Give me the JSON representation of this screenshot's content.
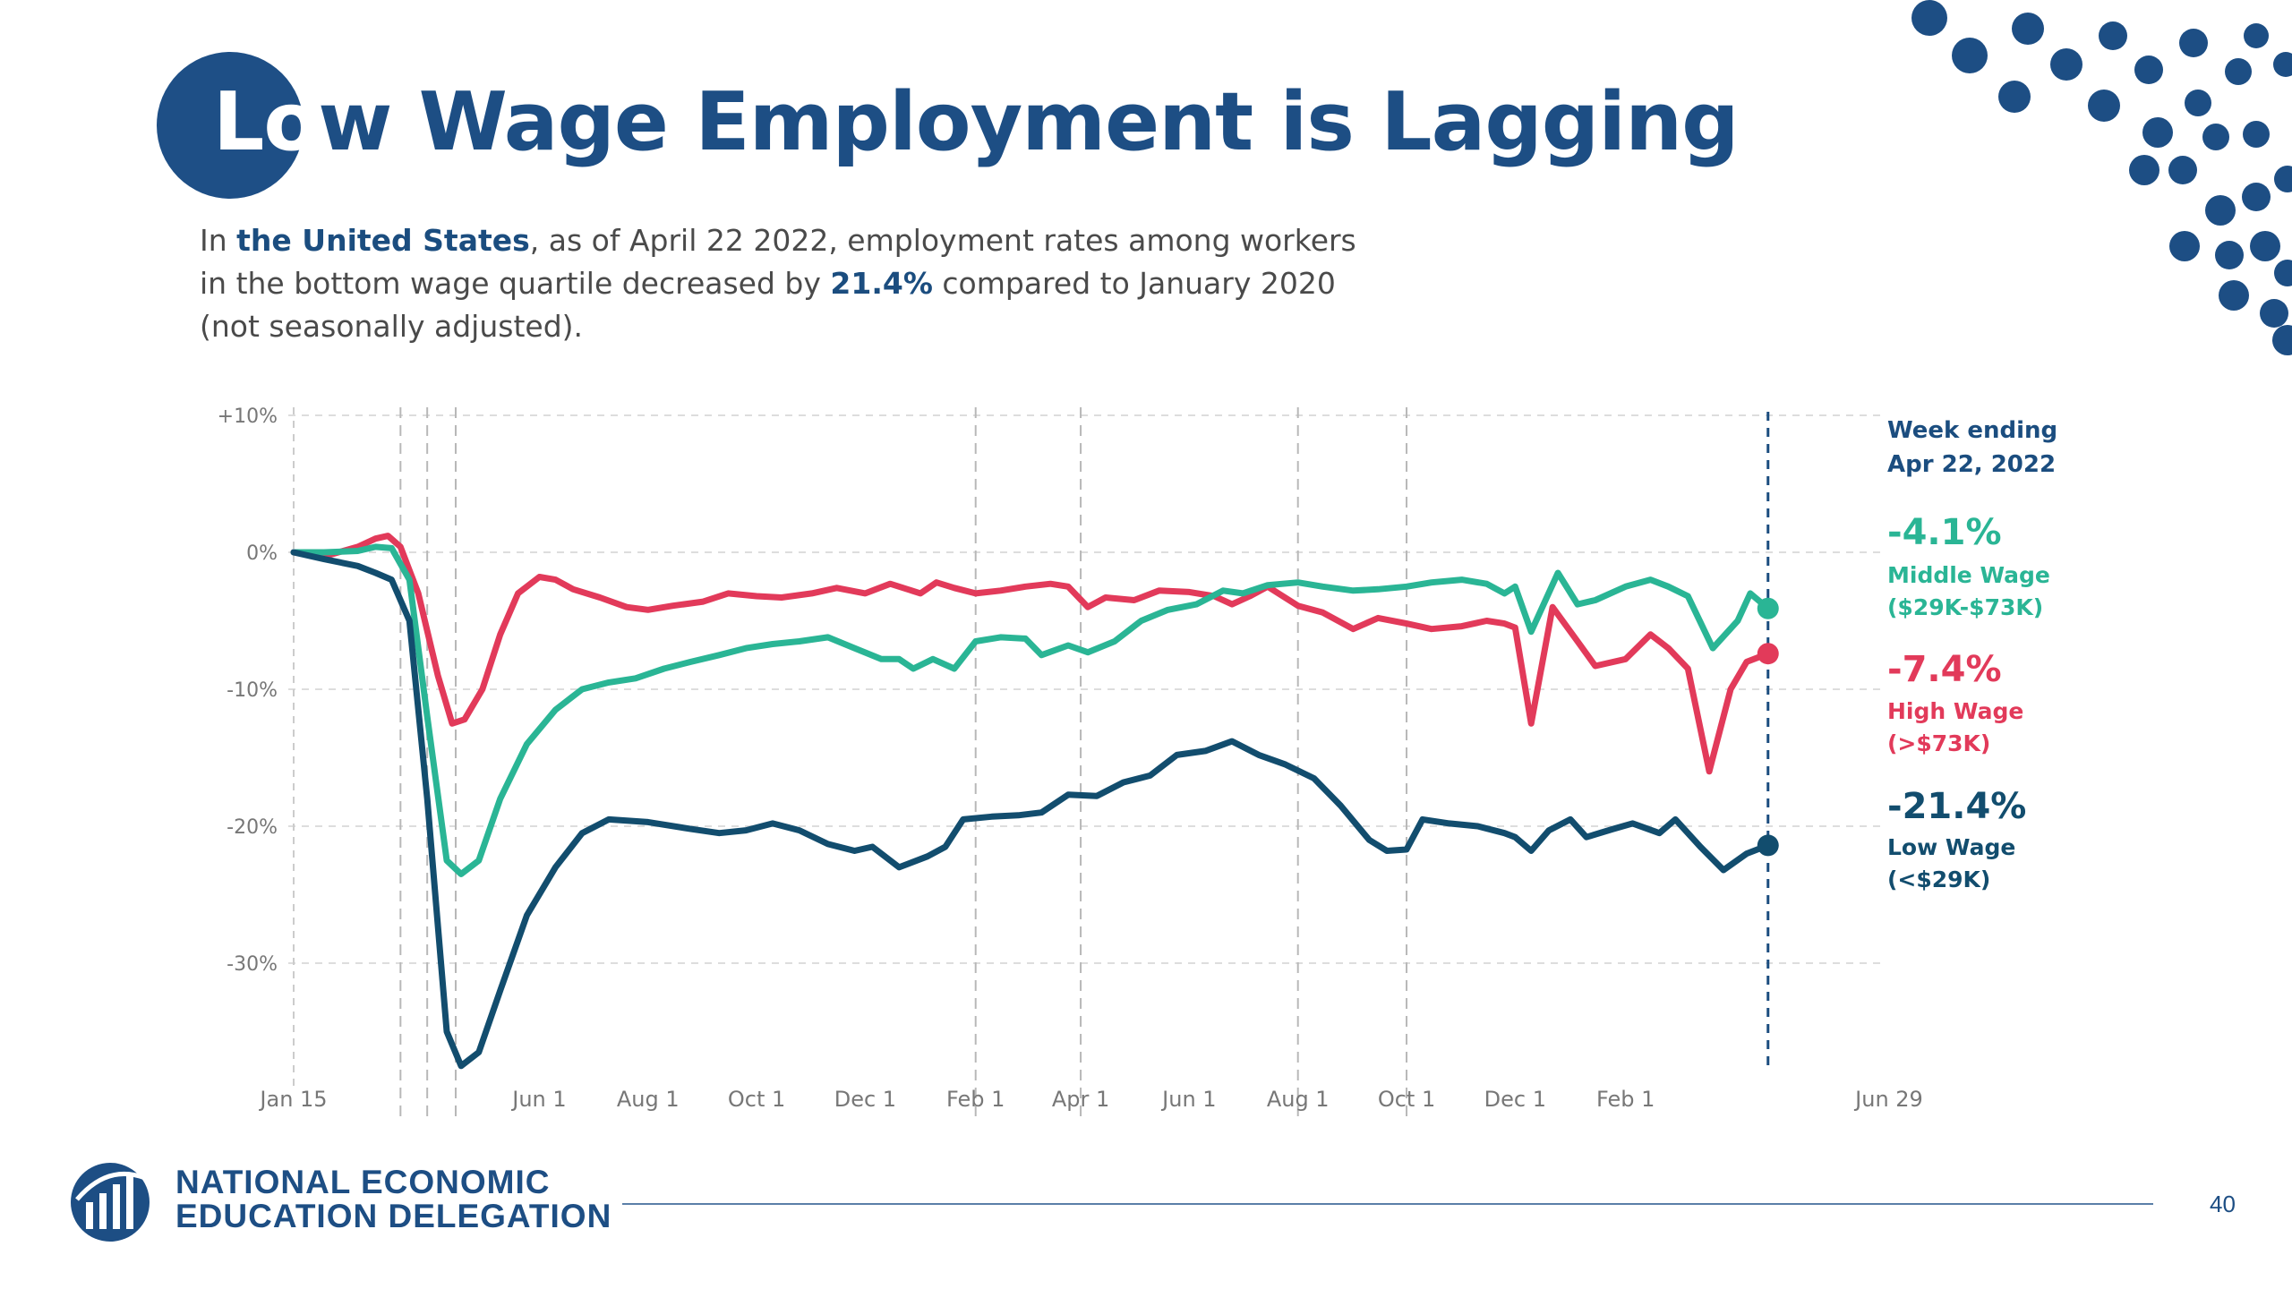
{
  "title": {
    "highlight": "Lo",
    "rest": "w Wage Employment is Lagging"
  },
  "subtitle": {
    "p1": "In ",
    "country": "the United States",
    "p2": ", as of April 22 2022, employment rates among workers in the bottom wage quartile decreased by ",
    "pct": "21.4%",
    "p3": " compared to January 2020 (not seasonally adjusted)."
  },
  "annotation": {
    "line1": "Week ending",
    "line2": "Apr 22, 2022"
  },
  "colors": {
    "high": "#e23a5a",
    "middle": "#2ab595",
    "low": "#124d6e",
    "brand": "#1d4e84"
  },
  "chart_data": {
    "type": "line",
    "x_labels": [
      "Jan 15",
      "Jun 1",
      "Aug 1",
      "Oct 1",
      "Dec 1",
      "Feb 1",
      "Apr 1",
      "Jun 1",
      "Aug 1",
      "Oct 1",
      "Dec 1",
      "Feb 1",
      "Jun 29"
    ],
    "x_tick_dates": [
      "2020-01-15",
      "2020-06-01",
      "2020-08-01",
      "2020-10-01",
      "2020-12-01",
      "2021-02-01",
      "2021-04-01",
      "2021-06-01",
      "2021-08-01",
      "2021-10-01",
      "2021-12-01",
      "2022-02-01",
      "2022-06-29"
    ],
    "y_ticks": [
      {
        "value": 10,
        "label": "+10%"
      },
      {
        "value": 0,
        "label": "0%"
      },
      {
        "value": -10,
        "label": "-10%"
      },
      {
        "value": -20,
        "label": "-20%"
      },
      {
        "value": -30,
        "label": "-30%"
      }
    ],
    "ylim": [
      -38,
      10
    ],
    "grid": true,
    "event_lines": [
      "2020-03-15",
      "2020-03-30",
      "2020-04-15",
      "2021-02-01",
      "2021-04-01",
      "2021-08-01",
      "2021-10-01"
    ],
    "marker_date": "2022-04-22",
    "series": [
      {
        "key": "high",
        "value_label": "-7.4%",
        "name": "High Wage",
        "range": "(>$73K)",
        "color": "#e23a5a",
        "points": [
          [
            "2020-01-15",
            0
          ],
          [
            "2020-02-01",
            -0.3
          ],
          [
            "2020-02-20",
            0.4
          ],
          [
            "2020-03-01",
            1.0
          ],
          [
            "2020-03-08",
            1.2
          ],
          [
            "2020-03-15",
            0.4
          ],
          [
            "2020-03-25",
            -3.0
          ],
          [
            "2020-04-05",
            -9.0
          ],
          [
            "2020-04-13",
            -12.5
          ],
          [
            "2020-04-20",
            -12.2
          ],
          [
            "2020-04-30",
            -10.0
          ],
          [
            "2020-05-10",
            -6.0
          ],
          [
            "2020-05-20",
            -3.0
          ],
          [
            "2020-06-01",
            -1.8
          ],
          [
            "2020-06-10",
            -2.0
          ],
          [
            "2020-06-20",
            -2.7
          ],
          [
            "2020-07-05",
            -3.3
          ],
          [
            "2020-07-20",
            -4.0
          ],
          [
            "2020-08-01",
            -4.2
          ],
          [
            "2020-08-15",
            -3.9
          ],
          [
            "2020-09-01",
            -3.6
          ],
          [
            "2020-09-15",
            -3.0
          ],
          [
            "2020-10-01",
            -3.2
          ],
          [
            "2020-10-15",
            -3.3
          ],
          [
            "2020-11-01",
            -3.0
          ],
          [
            "2020-11-15",
            -2.6
          ],
          [
            "2020-12-01",
            -3.0
          ],
          [
            "2020-12-15",
            -2.3
          ],
          [
            "2021-01-01",
            -3.0
          ],
          [
            "2021-01-10",
            -2.2
          ],
          [
            "2021-01-20",
            -2.6
          ],
          [
            "2021-02-01",
            -3.0
          ],
          [
            "2021-02-15",
            -2.8
          ],
          [
            "2021-03-01",
            -2.5
          ],
          [
            "2021-03-15",
            -2.3
          ],
          [
            "2021-03-25",
            -2.5
          ],
          [
            "2021-04-05",
            -4.0
          ],
          [
            "2021-04-15",
            -3.3
          ],
          [
            "2021-05-01",
            -3.5
          ],
          [
            "2021-05-15",
            -2.8
          ],
          [
            "2021-06-01",
            -2.9
          ],
          [
            "2021-06-15",
            -3.2
          ],
          [
            "2021-06-25",
            -3.8
          ],
          [
            "2021-07-05",
            -3.2
          ],
          [
            "2021-07-15",
            -2.5
          ],
          [
            "2021-08-01",
            -3.9
          ],
          [
            "2021-08-15",
            -4.4
          ],
          [
            "2021-09-01",
            -5.6
          ],
          [
            "2021-09-15",
            -4.8
          ],
          [
            "2021-10-01",
            -5.2
          ],
          [
            "2021-10-15",
            -5.6
          ],
          [
            "2021-11-01",
            -5.4
          ],
          [
            "2021-11-15",
            -5.0
          ],
          [
            "2021-11-25",
            -5.2
          ],
          [
            "2021-12-01",
            -5.5
          ],
          [
            "2021-12-10",
            -12.5
          ],
          [
            "2021-12-22",
            -4.0
          ],
          [
            "2022-01-05",
            -6.5
          ],
          [
            "2022-01-15",
            -8.3
          ],
          [
            "2022-02-01",
            -7.8
          ],
          [
            "2022-02-15",
            -6.0
          ],
          [
            "2022-02-25",
            -7.0
          ],
          [
            "2022-03-08",
            -8.5
          ],
          [
            "2022-03-20",
            -16.0
          ],
          [
            "2022-04-01",
            -10.0
          ],
          [
            "2022-04-10",
            -8.0
          ],
          [
            "2022-04-22",
            -7.4
          ]
        ]
      },
      {
        "key": "middle",
        "value_label": "-4.1%",
        "name": "Middle Wage",
        "range": "($29K-$73K)",
        "color": "#2ab595",
        "points": [
          [
            "2020-01-15",
            0
          ],
          [
            "2020-02-01",
            0
          ],
          [
            "2020-02-20",
            0.1
          ],
          [
            "2020-03-01",
            0.4
          ],
          [
            "2020-03-10",
            0.3
          ],
          [
            "2020-03-20",
            -2.0
          ],
          [
            "2020-03-30",
            -12.0
          ],
          [
            "2020-04-10",
            -22.5
          ],
          [
            "2020-04-18",
            -23.5
          ],
          [
            "2020-04-28",
            -22.5
          ],
          [
            "2020-05-10",
            -18.0
          ],
          [
            "2020-05-25",
            -14.0
          ],
          [
            "2020-06-10",
            -11.5
          ],
          [
            "2020-06-25",
            -10.0
          ],
          [
            "2020-07-10",
            -9.5
          ],
          [
            "2020-07-25",
            -9.2
          ],
          [
            "2020-08-10",
            -8.5
          ],
          [
            "2020-08-25",
            -8.0
          ],
          [
            "2020-09-10",
            -7.5
          ],
          [
            "2020-09-25",
            -7.0
          ],
          [
            "2020-10-10",
            -6.7
          ],
          [
            "2020-10-25",
            -6.5
          ],
          [
            "2020-11-10",
            -6.2
          ],
          [
            "2020-11-25",
            -7.0
          ],
          [
            "2020-12-10",
            -7.8
          ],
          [
            "2020-12-20",
            -7.8
          ],
          [
            "2020-12-28",
            -8.5
          ],
          [
            "2021-01-08",
            -7.8
          ],
          [
            "2021-01-20",
            -8.5
          ],
          [
            "2021-02-01",
            -6.5
          ],
          [
            "2021-02-15",
            -6.2
          ],
          [
            "2021-03-01",
            -6.3
          ],
          [
            "2021-03-10",
            -7.5
          ],
          [
            "2021-03-25",
            -6.8
          ],
          [
            "2021-04-05",
            -7.3
          ],
          [
            "2021-04-20",
            -6.5
          ],
          [
            "2021-05-05",
            -5.0
          ],
          [
            "2021-05-20",
            -4.2
          ],
          [
            "2021-06-05",
            -3.8
          ],
          [
            "2021-06-20",
            -2.8
          ],
          [
            "2021-07-01",
            -3.0
          ],
          [
            "2021-07-15",
            -2.4
          ],
          [
            "2021-08-01",
            -2.2
          ],
          [
            "2021-08-15",
            -2.5
          ],
          [
            "2021-09-01",
            -2.8
          ],
          [
            "2021-09-15",
            -2.7
          ],
          [
            "2021-10-01",
            -2.5
          ],
          [
            "2021-10-15",
            -2.2
          ],
          [
            "2021-11-01",
            -2.0
          ],
          [
            "2021-11-15",
            -2.3
          ],
          [
            "2021-11-25",
            -3.0
          ],
          [
            "2021-12-01",
            -2.5
          ],
          [
            "2021-12-10",
            -5.8
          ],
          [
            "2021-12-25",
            -1.5
          ],
          [
            "2022-01-05",
            -3.8
          ],
          [
            "2022-01-15",
            -3.5
          ],
          [
            "2022-02-01",
            -2.5
          ],
          [
            "2022-02-15",
            -2.0
          ],
          [
            "2022-02-25",
            -2.5
          ],
          [
            "2022-03-08",
            -3.2
          ],
          [
            "2022-03-22",
            -7.0
          ],
          [
            "2022-04-05",
            -5.0
          ],
          [
            "2022-04-12",
            -3.0
          ],
          [
            "2022-04-22",
            -4.1
          ]
        ]
      },
      {
        "key": "low",
        "value_label": "-21.4%",
        "name": "Low Wage",
        "range": "(<$29K)",
        "color": "#124d6e",
        "points": [
          [
            "2020-01-15",
            0
          ],
          [
            "2020-02-01",
            -0.5
          ],
          [
            "2020-02-20",
            -1.0
          ],
          [
            "2020-03-01",
            -1.5
          ],
          [
            "2020-03-10",
            -2.0
          ],
          [
            "2020-03-20",
            -5.0
          ],
          [
            "2020-03-30",
            -18.0
          ],
          [
            "2020-04-10",
            -35.0
          ],
          [
            "2020-04-18",
            -37.5
          ],
          [
            "2020-04-28",
            -36.5
          ],
          [
            "2020-05-10",
            -32.0
          ],
          [
            "2020-05-25",
            -26.5
          ],
          [
            "2020-06-10",
            -23.0
          ],
          [
            "2020-06-25",
            -20.5
          ],
          [
            "2020-07-10",
            -19.5
          ],
          [
            "2020-08-01",
            -19.7
          ],
          [
            "2020-08-25",
            -20.2
          ],
          [
            "2020-09-10",
            -20.5
          ],
          [
            "2020-09-25",
            -20.3
          ],
          [
            "2020-10-10",
            -19.8
          ],
          [
            "2020-10-25",
            -20.3
          ],
          [
            "2020-11-10",
            -21.3
          ],
          [
            "2020-11-25",
            -21.8
          ],
          [
            "2020-12-05",
            -21.5
          ],
          [
            "2020-12-20",
            -23.0
          ],
          [
            "2021-01-05",
            -22.2
          ],
          [
            "2021-01-15",
            -21.5
          ],
          [
            "2021-01-25",
            -19.5
          ],
          [
            "2021-02-10",
            -19.3
          ],
          [
            "2021-02-25",
            -19.2
          ],
          [
            "2021-03-10",
            -19.0
          ],
          [
            "2021-03-25",
            -17.7
          ],
          [
            "2021-04-10",
            -17.8
          ],
          [
            "2021-04-25",
            -16.8
          ],
          [
            "2021-05-10",
            -16.3
          ],
          [
            "2021-05-25",
            -14.8
          ],
          [
            "2021-06-10",
            -14.5
          ],
          [
            "2021-06-25",
            -13.8
          ],
          [
            "2021-07-10",
            -14.8
          ],
          [
            "2021-07-25",
            -15.5
          ],
          [
            "2021-08-10",
            -16.5
          ],
          [
            "2021-08-25",
            -18.5
          ],
          [
            "2021-09-10",
            -21.0
          ],
          [
            "2021-09-20",
            -21.8
          ],
          [
            "2021-10-01",
            -21.7
          ],
          [
            "2021-10-10",
            -19.5
          ],
          [
            "2021-10-25",
            -19.8
          ],
          [
            "2021-11-10",
            -20.0
          ],
          [
            "2021-11-25",
            -20.5
          ],
          [
            "2021-12-01",
            -20.8
          ],
          [
            "2021-12-10",
            -21.8
          ],
          [
            "2021-12-20",
            -20.3
          ],
          [
            "2022-01-01",
            -19.5
          ],
          [
            "2022-01-10",
            -20.8
          ],
          [
            "2022-01-25",
            -20.2
          ],
          [
            "2022-02-05",
            -19.8
          ],
          [
            "2022-02-20",
            -20.5
          ],
          [
            "2022-03-01",
            -19.5
          ],
          [
            "2022-03-15",
            -21.5
          ],
          [
            "2022-03-28",
            -23.2
          ],
          [
            "2022-04-10",
            -22.0
          ],
          [
            "2022-04-22",
            -21.4
          ]
        ]
      }
    ]
  },
  "logo": {
    "line1": "NATIONAL ECONOMIC",
    "line2": "EDUCATION DELEGATION"
  },
  "page_number": "40"
}
